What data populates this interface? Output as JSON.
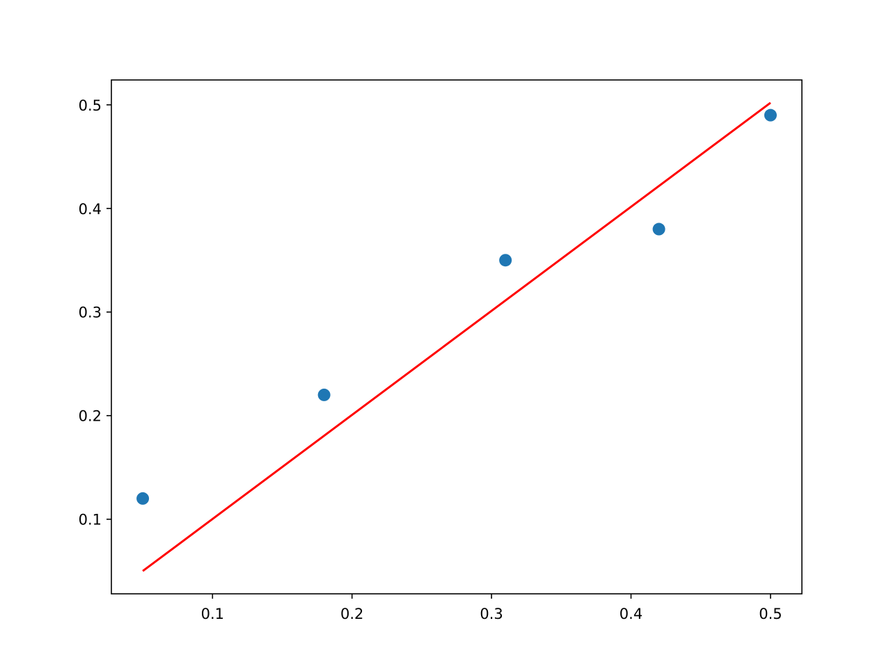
{
  "chart_data": {
    "type": "scatter",
    "title": "",
    "xlabel": "",
    "ylabel": "",
    "xlim": [
      0.0275,
      0.5225
    ],
    "ylim": [
      0.028,
      0.524
    ],
    "x_ticks": [
      0.1,
      0.2,
      0.3,
      0.4,
      0.5
    ],
    "x_tick_labels": [
      "0.1",
      "0.2",
      "0.3",
      "0.4",
      "0.5"
    ],
    "y_ticks": [
      0.1,
      0.2,
      0.3,
      0.4,
      0.5
    ],
    "y_tick_labels": [
      "0.1",
      "0.2",
      "0.3",
      "0.4",
      "0.5"
    ],
    "grid": false,
    "legend": "none",
    "series": [
      {
        "kind": "scatter",
        "color": "#1f77b4",
        "x": [
          0.05,
          0.18,
          0.31,
          0.42,
          0.5
        ],
        "y": [
          0.12,
          0.22,
          0.35,
          0.38,
          0.49
        ]
      },
      {
        "kind": "line",
        "color": "#ff0000",
        "x": [
          0.05,
          0.5
        ],
        "y": [
          0.05,
          0.502
        ]
      }
    ]
  }
}
